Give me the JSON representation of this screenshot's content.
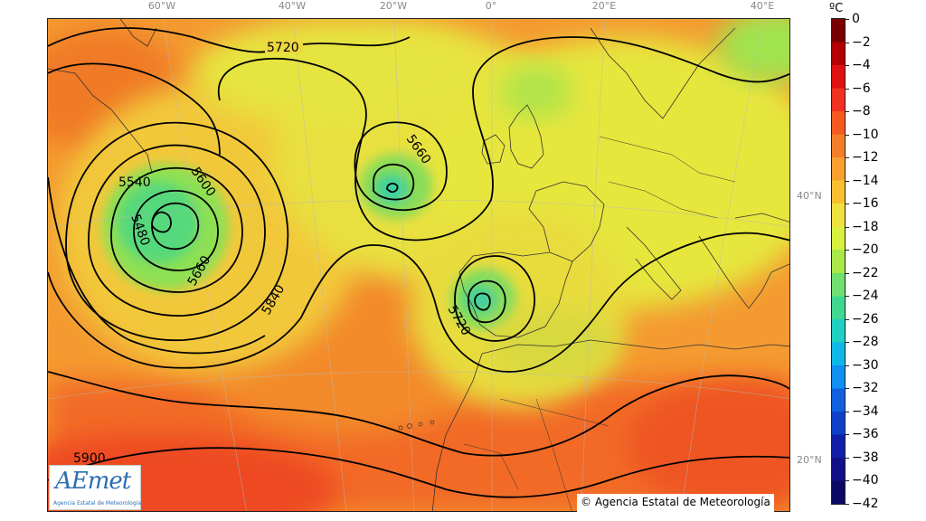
{
  "map": {
    "longitude_labels": [
      "60°W",
      "40°W",
      "20°W",
      "0°",
      "20°E",
      "40°E"
    ],
    "latitude_labels": [
      "40°N",
      "20°N"
    ],
    "contour_labels": [
      "5720",
      "5660",
      "5540",
      "5600",
      "5480",
      "5660",
      "5840",
      "5720",
      "5900"
    ],
    "contour_color": "#000000",
    "coastline_color": "#333333"
  },
  "colorbar": {
    "unit": "ºC",
    "ticks": [
      "0",
      "−2",
      "−4",
      "−6",
      "−8",
      "−10",
      "−12",
      "−14",
      "−16",
      "−18",
      "−20",
      "−22",
      "−24",
      "−26",
      "−28",
      "−30",
      "−32",
      "−34",
      "−36",
      "−38",
      "−40",
      "−42"
    ],
    "colors": [
      "#7a0000",
      "#b30000",
      "#e01010",
      "#f03020",
      "#f45a20",
      "#f47e28",
      "#f8a030",
      "#f8c030",
      "#f0e040",
      "#d8f040",
      "#a8e848",
      "#70e070",
      "#40d890",
      "#20d0c0",
      "#10b8e8",
      "#1090f0",
      "#1060e0",
      "#1040c8",
      "#1020a8",
      "#101088",
      "#0a0a66"
    ]
  },
  "logo": {
    "mark": "AEmet",
    "subtitle": "Agencia Estatal de Meteorología"
  },
  "copyright": "© Agencia Estatal de Meteorología"
}
